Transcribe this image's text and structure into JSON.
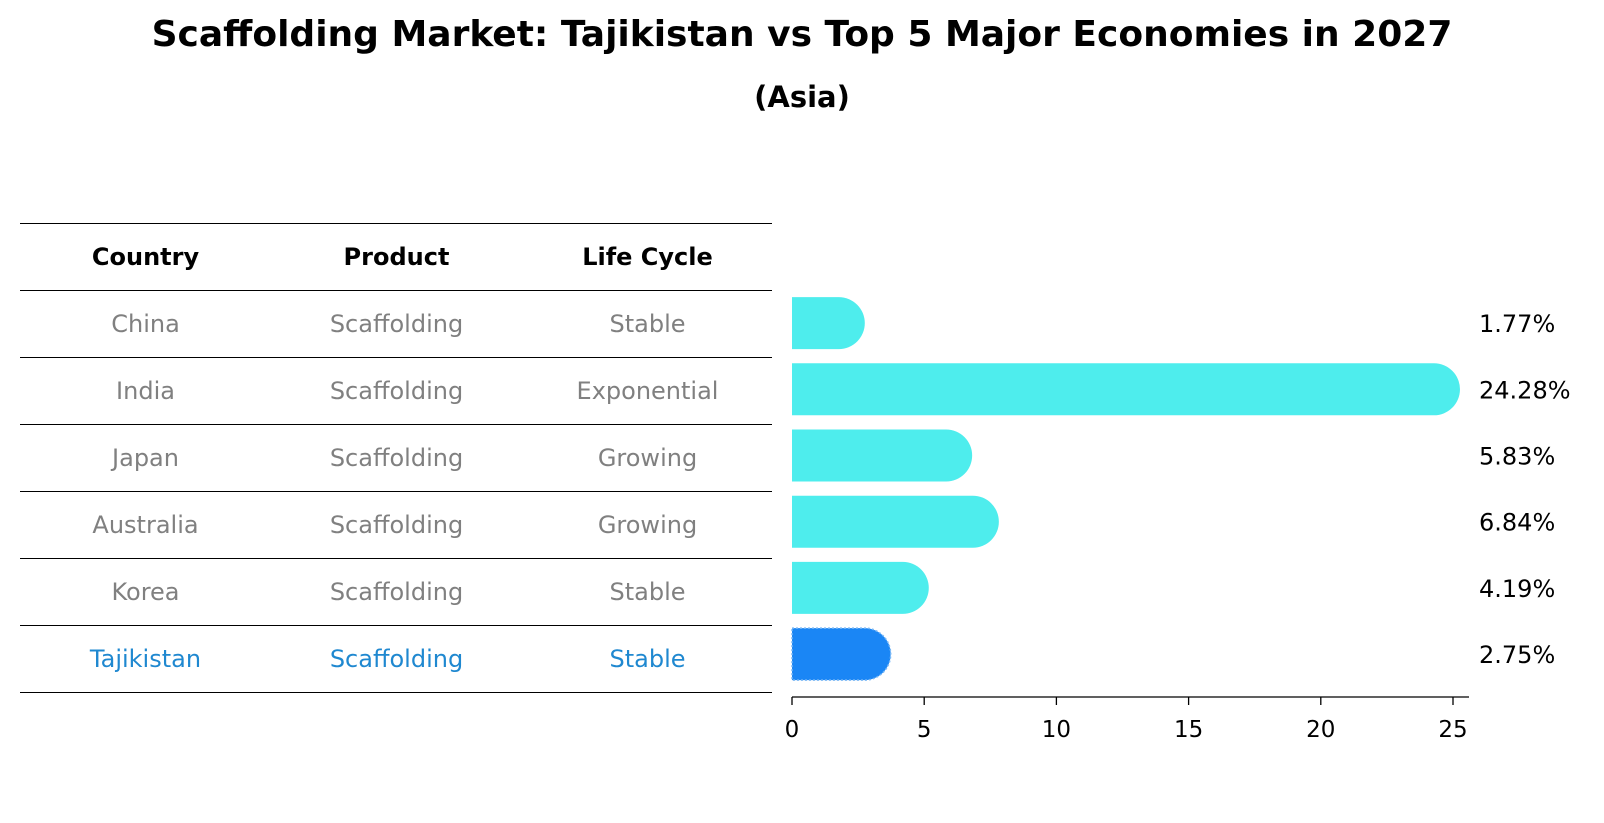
{
  "title": "Scaffolding Market: Tajikistan vs Top 5 Major Economies in 2027",
  "subtitle": "(Asia)",
  "table": {
    "headers": [
      "Country",
      "Product",
      "Life Cycle"
    ],
    "rows": [
      [
        "China",
        "Scaffolding",
        "Stable"
      ],
      [
        "India",
        "Scaffolding",
        "Exponential"
      ],
      [
        "Japan",
        "Scaffolding",
        "Growing"
      ],
      [
        "Australia",
        "Scaffolding",
        "Growing"
      ],
      [
        "Korea",
        "Scaffolding",
        "Stable"
      ],
      [
        "Tajikistan",
        "Scaffolding",
        "Stable"
      ]
    ],
    "highlight_color": "#1f88d0",
    "text_color": "#808080"
  },
  "chart_data": {
    "type": "bar",
    "orientation": "horizontal",
    "categories": [
      "China",
      "India",
      "Japan",
      "Australia",
      "Korea",
      "Tajikistan"
    ],
    "values": [
      1.77,
      24.28,
      5.83,
      6.84,
      4.19,
      2.75
    ],
    "labels": [
      "1.77%",
      "24.28%",
      "5.83%",
      "6.84%",
      "4.19%",
      "2.75%"
    ],
    "highlight": "Tajikistan",
    "xlim": [
      0,
      25.4
    ],
    "xticks": [
      0,
      5,
      10,
      15,
      20,
      25
    ],
    "colors": {
      "default": "#4eeded",
      "highlight": "#1a86f5"
    },
    "title": "",
    "xlabel": "",
    "ylabel": ""
  }
}
